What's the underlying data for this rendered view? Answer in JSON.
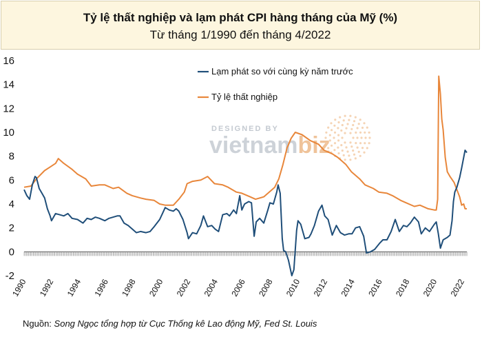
{
  "header": {
    "title": "Tỷ lệ thất nghiệp và lạm phát CPI hàng tháng của Mỹ (%)",
    "subtitle": "Từ tháng 1/1990 đến tháng 4/2022"
  },
  "source": {
    "prefix": "Nguồn: ",
    "text": "Song Ngọc tổng hợp từ Cục Thống kê Lao động Mỹ, Fed St. Louis"
  },
  "watermark": {
    "line1": "DESIGNED BY",
    "brand_a": "vietnam",
    "brand_b": "biz"
  },
  "colors": {
    "inflation": "#1f4e79",
    "unemployment": "#e8863a",
    "title_bg": "#fdf6df"
  },
  "chart_data": {
    "type": "line",
    "title": "Tỷ lệ thất nghiệp và lạm phát CPI hàng tháng của Mỹ (%)",
    "subtitle": "Từ tháng 1/1990 đến tháng 4/2022",
    "xlabel": "",
    "ylabel": "",
    "xlim": [
      1990,
      2022.33
    ],
    "ylim": [
      -2,
      16
    ],
    "yticks": [
      "-2",
      "0",
      "2",
      "4",
      "6",
      "8",
      "10",
      "12",
      "14",
      "16"
    ],
    "xticks": [
      "1990",
      "1992",
      "1994",
      "1996",
      "1998",
      "2000",
      "2002",
      "2004",
      "2006",
      "2008",
      "2010",
      "2012",
      "2014",
      "2016",
      "2018",
      "2020",
      "2022"
    ],
    "legend_position": "top-left",
    "grid": false,
    "series": [
      {
        "name": "Lạm phát so với cùng kỳ năm trước",
        "color": "#1f4e79",
        "points": [
          [
            1990.0,
            5.2
          ],
          [
            1990.2,
            4.7
          ],
          [
            1990.4,
            4.4
          ],
          [
            1990.6,
            5.6
          ],
          [
            1990.8,
            6.3
          ],
          [
            1990.9,
            6.2
          ],
          [
            1991.1,
            5.3
          ],
          [
            1991.3,
            4.9
          ],
          [
            1991.5,
            4.5
          ],
          [
            1991.7,
            3.6
          ],
          [
            1991.9,
            3.0
          ],
          [
            1992.0,
            2.6
          ],
          [
            1992.3,
            3.2
          ],
          [
            1992.6,
            3.1
          ],
          [
            1992.9,
            3.0
          ],
          [
            1993.2,
            3.2
          ],
          [
            1993.5,
            2.8
          ],
          [
            1993.9,
            2.7
          ],
          [
            1994.3,
            2.4
          ],
          [
            1994.6,
            2.8
          ],
          [
            1994.9,
            2.7
          ],
          [
            1995.2,
            2.9
          ],
          [
            1995.5,
            2.8
          ],
          [
            1995.9,
            2.6
          ],
          [
            1996.2,
            2.8
          ],
          [
            1996.5,
            2.9
          ],
          [
            1996.8,
            3.0
          ],
          [
            1997.0,
            3.0
          ],
          [
            1997.3,
            2.4
          ],
          [
            1997.6,
            2.2
          ],
          [
            1997.9,
            1.9
          ],
          [
            1998.2,
            1.6
          ],
          [
            1998.5,
            1.7
          ],
          [
            1998.9,
            1.6
          ],
          [
            1999.2,
            1.7
          ],
          [
            1999.5,
            2.1
          ],
          [
            1999.9,
            2.7
          ],
          [
            2000.1,
            3.2
          ],
          [
            2000.3,
            3.7
          ],
          [
            2000.6,
            3.5
          ],
          [
            2000.9,
            3.4
          ],
          [
            2001.1,
            3.6
          ],
          [
            2001.3,
            3.4
          ],
          [
            2001.6,
            2.7
          ],
          [
            2001.9,
            1.6
          ],
          [
            2002.0,
            1.1
          ],
          [
            2002.3,
            1.6
          ],
          [
            2002.6,
            1.5
          ],
          [
            2002.9,
            2.2
          ],
          [
            2003.1,
            3.0
          ],
          [
            2003.4,
            2.1
          ],
          [
            2003.7,
            2.2
          ],
          [
            2003.95,
            1.9
          ],
          [
            2004.2,
            1.7
          ],
          [
            2004.5,
            3.1
          ],
          [
            2004.8,
            3.2
          ],
          [
            2005.0,
            3.0
          ],
          [
            2005.3,
            3.5
          ],
          [
            2005.5,
            3.2
          ],
          [
            2005.75,
            4.7
          ],
          [
            2005.9,
            3.5
          ],
          [
            2006.1,
            4.0
          ],
          [
            2006.4,
            4.2
          ],
          [
            2006.6,
            4.1
          ],
          [
            2006.8,
            1.3
          ],
          [
            2006.95,
            2.5
          ],
          [
            2007.2,
            2.8
          ],
          [
            2007.5,
            2.4
          ],
          [
            2007.8,
            3.5
          ],
          [
            2007.95,
            4.1
          ],
          [
            2008.2,
            4.0
          ],
          [
            2008.45,
            5.0
          ],
          [
            2008.55,
            5.6
          ],
          [
            2008.7,
            4.9
          ],
          [
            2008.85,
            1.1
          ],
          [
            2008.95,
            0.1
          ],
          [
            2009.1,
            0.0
          ],
          [
            2009.3,
            -0.7
          ],
          [
            2009.55,
            -2.0
          ],
          [
            2009.7,
            -1.5
          ],
          [
            2009.9,
            1.8
          ],
          [
            2010.0,
            2.6
          ],
          [
            2010.2,
            2.3
          ],
          [
            2010.5,
            1.1
          ],
          [
            2010.8,
            1.2
          ],
          [
            2010.95,
            1.5
          ],
          [
            2011.2,
            2.2
          ],
          [
            2011.5,
            3.4
          ],
          [
            2011.75,
            3.9
          ],
          [
            2011.95,
            3.0
          ],
          [
            2012.2,
            2.7
          ],
          [
            2012.5,
            1.4
          ],
          [
            2012.8,
            2.2
          ],
          [
            2013.1,
            1.6
          ],
          [
            2013.4,
            1.4
          ],
          [
            2013.7,
            1.5
          ],
          [
            2013.95,
            1.5
          ],
          [
            2014.2,
            2.0
          ],
          [
            2014.5,
            2.1
          ],
          [
            2014.8,
            1.3
          ],
          [
            2015.0,
            -0.1
          ],
          [
            2015.3,
            0.0
          ],
          [
            2015.6,
            0.2
          ],
          [
            2015.95,
            0.7
          ],
          [
            2016.2,
            1.0
          ],
          [
            2016.5,
            1.0
          ],
          [
            2016.8,
            1.7
          ],
          [
            2017.1,
            2.7
          ],
          [
            2017.4,
            1.7
          ],
          [
            2017.7,
            2.2
          ],
          [
            2017.95,
            2.1
          ],
          [
            2018.2,
            2.4
          ],
          [
            2018.5,
            2.9
          ],
          [
            2018.8,
            2.5
          ],
          [
            2019.0,
            1.5
          ],
          [
            2019.3,
            2.0
          ],
          [
            2019.6,
            1.7
          ],
          [
            2019.95,
            2.3
          ],
          [
            2020.1,
            2.5
          ],
          [
            2020.25,
            1.5
          ],
          [
            2020.4,
            0.3
          ],
          [
            2020.6,
            1.0
          ],
          [
            2020.9,
            1.2
          ],
          [
            2021.1,
            1.4
          ],
          [
            2021.25,
            2.6
          ],
          [
            2021.35,
            4.2
          ],
          [
            2021.45,
            5.0
          ],
          [
            2021.6,
            5.4
          ],
          [
            2021.8,
            6.2
          ],
          [
            2021.95,
            7.0
          ],
          [
            2022.1,
            7.9
          ],
          [
            2022.2,
            8.5
          ],
          [
            2022.33,
            8.3
          ]
        ]
      },
      {
        "name": "Tỷ lệ thất nghiệp",
        "color": "#e8863a",
        "points": [
          [
            1990.0,
            5.4
          ],
          [
            1990.5,
            5.5
          ],
          [
            1990.9,
            6.1
          ],
          [
            1991.5,
            6.8
          ],
          [
            1991.9,
            7.1
          ],
          [
            1992.3,
            7.4
          ],
          [
            1992.5,
            7.8
          ],
          [
            1992.9,
            7.4
          ],
          [
            1993.5,
            6.9
          ],
          [
            1993.9,
            6.5
          ],
          [
            1994.5,
            6.1
          ],
          [
            1994.9,
            5.5
          ],
          [
            1995.5,
            5.6
          ],
          [
            1995.9,
            5.6
          ],
          [
            1996.5,
            5.3
          ],
          [
            1996.9,
            5.4
          ],
          [
            1997.5,
            4.9
          ],
          [
            1997.9,
            4.7
          ],
          [
            1998.5,
            4.5
          ],
          [
            1998.9,
            4.4
          ],
          [
            1999.5,
            4.3
          ],
          [
            1999.9,
            4.0
          ],
          [
            2000.3,
            3.9
          ],
          [
            2000.9,
            3.9
          ],
          [
            2001.3,
            4.4
          ],
          [
            2001.7,
            5.0
          ],
          [
            2001.9,
            5.7
          ],
          [
            2002.3,
            5.9
          ],
          [
            2002.9,
            6.0
          ],
          [
            2003.4,
            6.3
          ],
          [
            2003.9,
            5.7
          ],
          [
            2004.5,
            5.6
          ],
          [
            2004.9,
            5.4
          ],
          [
            2005.5,
            5.0
          ],
          [
            2005.9,
            4.9
          ],
          [
            2006.5,
            4.6
          ],
          [
            2006.9,
            4.4
          ],
          [
            2007.5,
            4.6
          ],
          [
            2007.9,
            5.0
          ],
          [
            2008.3,
            5.4
          ],
          [
            2008.6,
            6.1
          ],
          [
            2008.9,
            7.3
          ],
          [
            2009.2,
            8.7
          ],
          [
            2009.5,
            9.5
          ],
          [
            2009.8,
            10.0
          ],
          [
            2010.3,
            9.8
          ],
          [
            2010.9,
            9.3
          ],
          [
            2011.5,
            9.0
          ],
          [
            2011.9,
            8.5
          ],
          [
            2012.5,
            8.2
          ],
          [
            2012.9,
            7.9
          ],
          [
            2013.5,
            7.3
          ],
          [
            2013.9,
            6.7
          ],
          [
            2014.5,
            6.1
          ],
          [
            2014.9,
            5.6
          ],
          [
            2015.5,
            5.3
          ],
          [
            2015.9,
            5.0
          ],
          [
            2016.5,
            4.9
          ],
          [
            2016.9,
            4.7
          ],
          [
            2017.5,
            4.3
          ],
          [
            2017.9,
            4.1
          ],
          [
            2018.5,
            3.8
          ],
          [
            2018.9,
            3.9
          ],
          [
            2019.5,
            3.6
          ],
          [
            2019.95,
            3.5
          ],
          [
            2020.1,
            3.5
          ],
          [
            2020.2,
            4.4
          ],
          [
            2020.28,
            14.7
          ],
          [
            2020.4,
            13.2
          ],
          [
            2020.5,
            11.1
          ],
          [
            2020.6,
            10.2
          ],
          [
            2020.75,
            7.9
          ],
          [
            2020.9,
            6.7
          ],
          [
            2021.1,
            6.3
          ],
          [
            2021.4,
            5.8
          ],
          [
            2021.6,
            5.2
          ],
          [
            2021.8,
            4.6
          ],
          [
            2021.95,
            3.9
          ],
          [
            2022.1,
            4.0
          ],
          [
            2022.2,
            3.6
          ],
          [
            2022.33,
            3.6
          ]
        ]
      }
    ]
  }
}
